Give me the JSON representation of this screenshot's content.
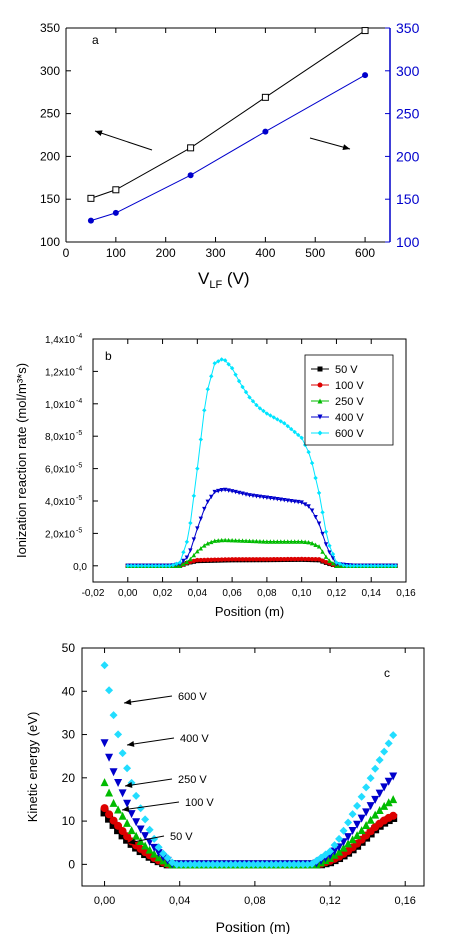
{
  "chart_data": [
    {
      "type": "line",
      "panel_label": "a",
      "xlabel": "V",
      "xlabel_sub": "LF",
      "xlabel_unit": " (V)",
      "xlim": [
        0,
        650
      ],
      "ylim": [
        100,
        350
      ],
      "y2lim": [
        100,
        350
      ],
      "xticks": [
        0,
        100,
        200,
        300,
        400,
        500,
        600
      ],
      "yticks": [
        100,
        150,
        200,
        250,
        300,
        350
      ],
      "y2ticks": [
        100,
        150,
        200,
        250,
        300,
        350
      ],
      "colors": {
        "left": "#000000",
        "right": "#0000cc"
      },
      "series": [
        {
          "axis": "left",
          "marker": "open-square",
          "color": "#000000",
          "x": [
            50,
            100,
            250,
            400,
            600
          ],
          "y": [
            151,
            161,
            210,
            269,
            347
          ]
        },
        {
          "axis": "right",
          "marker": "circle",
          "color": "#0000cc",
          "x": [
            50,
            100,
            250,
            400,
            600
          ],
          "y": [
            125,
            134,
            178,
            229,
            295
          ]
        }
      ]
    },
    {
      "type": "line",
      "panel_label": "b",
      "xlabel": "Position (m)",
      "ylabel": "Ionization reaction rate (mol/m³*s)",
      "xlim": [
        -0.02,
        0.16
      ],
      "ylim": [
        -1e-05,
        0.00014
      ],
      "xtick_labels": [
        "-0,02",
        "0,00",
        "0,02",
        "0,04",
        "0,06",
        "0,08",
        "0,10",
        "0,12",
        "0,14",
        "0,16"
      ],
      "ytick_labels": [
        "0,0",
        "2,0x10",
        "4,0x10",
        "6,0x10",
        "8,0x10",
        "1,0x10",
        "1,2x10",
        "1,4x10"
      ],
      "ytick_exponents": [
        "",
        "-5",
        "-5",
        "-5",
        "-5",
        "-4",
        "-4",
        "-4"
      ],
      "legend_position": "top-right",
      "series": [
        {
          "name": "50 V",
          "color": "#000000",
          "marker": "square",
          "x": [
            0.0,
            0.02,
            0.03,
            0.035,
            0.04,
            0.06,
            0.08,
            0.1,
            0.11,
            0.115,
            0.12,
            0.135,
            0.155
          ],
          "y": [
            0,
            0,
            0,
            2e-06,
            3e-06,
            3.5e-06,
            3.6e-06,
            3.8e-06,
            3.5e-06,
            1.5e-06,
            0,
            0,
            0
          ]
        },
        {
          "name": "100 V",
          "color": "#dd0000",
          "marker": "circle",
          "x": [
            0.0,
            0.02,
            0.03,
            0.035,
            0.04,
            0.06,
            0.08,
            0.1,
            0.11,
            0.115,
            0.12,
            0.135,
            0.155
          ],
          "y": [
            0,
            0,
            0,
            2.2e-06,
            3.5e-06,
            4e-06,
            4e-06,
            4.2e-06,
            4e-06,
            1.8e-06,
            0,
            0,
            0
          ]
        },
        {
          "name": "250 V",
          "color": "#00bb00",
          "marker": "triangle-up",
          "x": [
            0.0,
            0.02,
            0.03,
            0.035,
            0.04,
            0.045,
            0.05,
            0.055,
            0.06,
            0.08,
            0.1,
            0.105,
            0.11,
            0.115,
            0.12,
            0.135,
            0.155
          ],
          "y": [
            0,
            0,
            0,
            3e-06,
            9e-06,
            1.35e-05,
            1.55e-05,
            1.6e-05,
            1.58e-05,
            1.5e-05,
            1.5e-05,
            1.45e-05,
            1.2e-05,
            4e-06,
            0,
            0,
            0
          ]
        },
        {
          "name": "400 V",
          "color": "#0000cc",
          "marker": "triangle-down",
          "x": [
            0.0,
            0.02,
            0.025,
            0.03,
            0.035,
            0.04,
            0.045,
            0.05,
            0.055,
            0.06,
            0.07,
            0.08,
            0.09,
            0.1,
            0.105,
            0.11,
            0.115,
            0.12,
            0.13,
            0.155
          ],
          "y": [
            0,
            0,
            0,
            1e-06,
            6e-06,
            2.3e-05,
            3.8e-05,
            4.55e-05,
            4.7e-05,
            4.6e-05,
            4.35e-05,
            4.2e-05,
            4.05e-05,
            3.9e-05,
            3.6e-05,
            2.6e-05,
            1e-05,
            1e-06,
            0,
            0
          ]
        },
        {
          "name": "600 V",
          "color": "#00e5ff",
          "marker": "diamond",
          "x": [
            0.0,
            0.02,
            0.025,
            0.03,
            0.035,
            0.04,
            0.045,
            0.05,
            0.055,
            0.06,
            0.065,
            0.07,
            0.075,
            0.08,
            0.09,
            0.1,
            0.105,
            0.11,
            0.115,
            0.12,
            0.125,
            0.135,
            0.155
          ],
          "y": [
            0,
            0,
            0,
            2e-06,
            1.8e-05,
            6e-05,
            0.000105,
            0.000125,
            0.000128,
            0.000122,
            0.000112,
            0.000104,
            9.8e-05,
            9.4e-05,
            8.8e-05,
            7.9e-05,
            6.8e-05,
            4.5e-05,
            1.5e-05,
            2e-06,
            0,
            0,
            0
          ]
        }
      ]
    },
    {
      "type": "scatter",
      "panel_label": "c",
      "xlabel": "Position (m)",
      "ylabel": "Kinetic energy (eV)",
      "xlim": [
        -0.012,
        0.17
      ],
      "ylim": [
        -5,
        50
      ],
      "xticks": [
        0.0,
        0.04,
        0.08,
        0.12,
        0.16
      ],
      "xtick_labels": [
        "0,00",
        "0,04",
        "0,08",
        "0,12",
        "0,16"
      ],
      "yticks": [
        0,
        10,
        20,
        30,
        40,
        50
      ],
      "annotations": [
        "600 V",
        "400 V",
        "250 V",
        "100 V",
        "50 V"
      ],
      "series": [
        {
          "name": "50 V",
          "color": "#000000",
          "marker": "square",
          "x": [
            0.0,
            0.005,
            0.01,
            0.015,
            0.02,
            0.025,
            0.03,
            0.033,
            0.115,
            0.12,
            0.125,
            0.13,
            0.135,
            0.14,
            0.145,
            0.15,
            0.155
          ],
          "y": [
            12,
            9,
            6.5,
            4.5,
            2.8,
            1.5,
            0.5,
            0,
            0,
            0.5,
            1.5,
            2.8,
            4.5,
            6.5,
            8.5,
            10,
            11
          ]
        },
        {
          "name": "100 V",
          "color": "#dd0000",
          "marker": "circle",
          "x": [
            0.0,
            0.005,
            0.01,
            0.015,
            0.02,
            0.025,
            0.03,
            0.034,
            0.114,
            0.12,
            0.125,
            0.13,
            0.135,
            0.14,
            0.145,
            0.15,
            0.155
          ],
          "y": [
            13,
            10,
            7.5,
            5,
            3.3,
            1.8,
            0.6,
            0,
            0,
            0.8,
            1.8,
            3.2,
            5,
            7,
            9,
            10.5,
            11.5
          ]
        },
        {
          "name": "250 V",
          "color": "#00bb00",
          "marker": "triangle-up",
          "x": [
            0.0,
            0.005,
            0.01,
            0.015,
            0.02,
            0.025,
            0.03,
            0.035,
            0.113,
            0.12,
            0.125,
            0.13,
            0.135,
            0.14,
            0.145,
            0.15,
            0.155
          ],
          "y": [
            19,
            14,
            11,
            7.5,
            5,
            3,
            1.2,
            0,
            0,
            1.5,
            3,
            5,
            7,
            9.5,
            12,
            14,
            15.5
          ]
        },
        {
          "name": "400 V",
          "color": "#0000cc",
          "marker": "triangle-down",
          "x": [
            0.0,
            0.005,
            0.01,
            0.015,
            0.02,
            0.025,
            0.03,
            0.036,
            0.112,
            0.12,
            0.125,
            0.13,
            0.135,
            0.14,
            0.145,
            0.15,
            0.155
          ],
          "y": [
            28,
            21,
            16,
            11,
            7.5,
            4.5,
            2,
            0,
            0,
            2,
            4,
            6.5,
            9.5,
            12.5,
            15.5,
            18.5,
            21
          ]
        },
        {
          "name": "600 V",
          "color": "#22ddff",
          "marker": "diamond",
          "x": [
            0.0,
            0.005,
            0.01,
            0.015,
            0.02,
            0.025,
            0.03,
            0.037,
            0.11,
            0.12,
            0.125,
            0.13,
            0.135,
            0.14,
            0.145,
            0.15,
            0.155
          ],
          "y": [
            46,
            34,
            25,
            18,
            12,
            7,
            3,
            0,
            0,
            3,
            6,
            10,
            14,
            18.5,
            23,
            27,
            31
          ]
        }
      ]
    }
  ]
}
